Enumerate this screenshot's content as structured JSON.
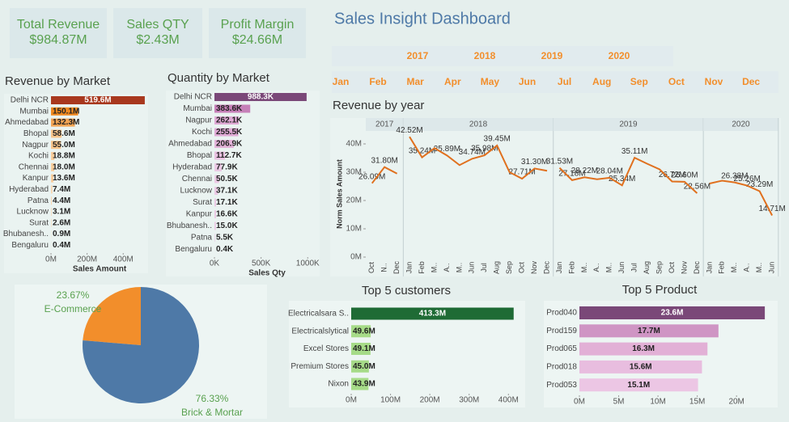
{
  "title": "Sales Insight Dashboard",
  "kpis": [
    {
      "label": "Total Revenue",
      "value": "$984.87M"
    },
    {
      "label": "Sales QTY",
      "value": "$2.43M"
    },
    {
      "label": "Profit Margin",
      "value": "$24.66M"
    }
  ],
  "filters": {
    "years": [
      "2017",
      "2018",
      "2019",
      "2020"
    ],
    "months": [
      "Jan",
      "Feb",
      "Mar",
      "Apr",
      "May",
      "Jun",
      "Jul",
      "Aug",
      "Sep",
      "Oct",
      "Nov",
      "Dec"
    ]
  },
  "chart_data": [
    {
      "type": "hbar",
      "title": "Revenue by Market",
      "categories": [
        "Delhi NCR",
        "Mumbai",
        "Ahmedabad",
        "Bhopal",
        "Nagpur",
        "Kochi",
        "Chennai",
        "Kanpur",
        "Hyderabad",
        "Patna",
        "Lucknow",
        "Surat",
        "Bhubanesh..",
        "Bengaluru"
      ],
      "values": [
        519.6,
        150.1,
        132.3,
        58.6,
        55.0,
        18.8,
        18.0,
        13.6,
        7.4,
        4.4,
        3.1,
        2.6,
        0.9,
        0.4
      ],
      "value_labels": [
        "519.6M",
        "150.1M",
        "132.3M",
        "58.6M",
        "55.0M",
        "18.8M",
        "18.0M",
        "13.6M",
        "7.4M",
        "4.4M",
        "3.1M",
        "2.6M",
        "0.9M",
        "0.4M"
      ],
      "colors": [
        "#a8381e",
        "#f0891f",
        "#f4a453",
        "#f7c48a",
        "#f7c48a",
        "#f8cd9c",
        "#f8cd9c",
        "#f8cd9c",
        "#f9d6ad",
        "#f9d6ad",
        "#f9d6ad",
        "#f9d6ad",
        "#f9d6ad",
        "#f9d6ad"
      ],
      "xlim": [
        0,
        520
      ],
      "xticks": [
        {
          "value": 0,
          "label": "0M"
        },
        {
          "value": 200,
          "label": "200M"
        },
        {
          "value": 400,
          "label": "400M"
        }
      ],
      "xlabel": "Sales Amount"
    },
    {
      "type": "hbar",
      "title": "Quantity by Market",
      "categories": [
        "Delhi NCR",
        "Mumbai",
        "Nagpur",
        "Kochi",
        "Ahmedabad",
        "Bhopal",
        "Hyderabad",
        "Chennai",
        "Lucknow",
        "Surat",
        "Kanpur",
        "Bhubanesh..",
        "Patna",
        "Bengaluru"
      ],
      "values": [
        988.3,
        383.6,
        262.1,
        255.5,
        206.9,
        112.7,
        77.9,
        50.5,
        37.1,
        17.1,
        16.6,
        15.0,
        5.5,
        0.4
      ],
      "value_labels": [
        "988.3K",
        "383.6K",
        "262.1K",
        "255.5K",
        "206.9K",
        "112.7K",
        "77.9K",
        "50.5K",
        "37.1K",
        "17.1K",
        "16.6K",
        "15.0K",
        "5.5K",
        "0.4K"
      ],
      "colors": [
        "#7a4878",
        "#c680b8",
        "#dfa9d4",
        "#dfa9d4",
        "#e3b3d9",
        "#e8c0e0",
        "#ebc9e4",
        "#ebc9e4",
        "#ebc9e4",
        "#ebc9e4",
        "#ebc9e4",
        "#ebc9e4",
        "#ebc9e4",
        "#ebc9e4"
      ],
      "xlim": [
        0,
        1050
      ],
      "xticks": [
        {
          "value": 0,
          "label": "0K"
        },
        {
          "value": 500,
          "label": "500K"
        },
        {
          "value": 1000,
          "label": "1000K"
        }
      ],
      "xlabel": "Sales Qty"
    },
    {
      "type": "line",
      "title": "Revenue by year",
      "ylabel": "Norm Sales Amount",
      "color": "#e0701e",
      "ylim": [
        0,
        45
      ],
      "yticks": [
        {
          "value": 0,
          "label": "0M"
        },
        {
          "value": 10,
          "label": "10M"
        },
        {
          "value": 20,
          "label": "20M"
        },
        {
          "value": 30,
          "label": "30M"
        },
        {
          "value": 40,
          "label": "40M"
        }
      ],
      "panels": [
        {
          "name": "2017",
          "categories": [
            "Oct",
            "N..",
            "Dec"
          ],
          "values": [
            26.09,
            31.8,
            29.5
          ],
          "value_labels": [
            "26.09M",
            "31.80M",
            null
          ]
        },
        {
          "name": "2018",
          "categories": [
            "Jan",
            "Feb",
            "M..",
            "A..",
            "M..",
            "Jun",
            "Jul",
            "Aug",
            "Sep",
            "Oct",
            "Nov",
            "Dec"
          ],
          "values": [
            42.52,
            35.24,
            38.5,
            35.89,
            32.5,
            34.74,
            35.98,
            39.45,
            30.0,
            27.71,
            31.3,
            30.5
          ],
          "value_labels": [
            "42.52M",
            "35.24M",
            null,
            "35.89M",
            null,
            "34.74M",
            "35.98M",
            "39.45M",
            null,
            "27.71M",
            "31.30M",
            null
          ]
        },
        {
          "name": "2019",
          "categories": [
            "Jan",
            "Feb",
            "M..",
            "A..",
            "M..",
            "Jun",
            "Jul",
            "Aug",
            "Sep",
            "Oct",
            "Nov",
            "Dec"
          ],
          "values": [
            31.53,
            27.18,
            28.22,
            27.5,
            28.04,
            25.34,
            35.11,
            33.0,
            31.0,
            26.72,
            26.6,
            22.56
          ],
          "value_labels": [
            "31.53M",
            "27.18M",
            "28.22M",
            null,
            "28.04M",
            "25.34M",
            "35.11M",
            null,
            null,
            "26.72M",
            "26.60M",
            "22.56M"
          ]
        },
        {
          "name": "2020",
          "categories": [
            "Jan",
            "Feb",
            "M..",
            "A..",
            "M..",
            "Jun"
          ],
          "values": [
            26.0,
            27.0,
            26.38,
            25.26,
            23.29,
            14.71
          ],
          "value_labels": [
            null,
            null,
            "26.38M",
            "25.26M",
            "23.29M",
            "14.71M"
          ]
        }
      ]
    },
    {
      "type": "pie",
      "categories": [
        "E-Commerce",
        "Brick & Mortar"
      ],
      "values": [
        23.67,
        76.33
      ],
      "value_labels": [
        "23.67%",
        "76.33%"
      ],
      "colors": [
        "#f28e2b",
        "#4e79a7"
      ]
    },
    {
      "type": "hbar",
      "title": "Top 5 customers",
      "categories": [
        "Electricalsara S..",
        "Electricalslytical",
        "Excel Stores",
        "Premium Stores",
        "Nixon"
      ],
      "values": [
        413.3,
        49.6,
        49.1,
        45.0,
        43.9
      ],
      "value_labels": [
        "413.3M",
        "49.6M",
        "49.1M",
        "45.0M",
        "43.9M"
      ],
      "colors": [
        "#1f6b35",
        "#a6db88",
        "#a6db88",
        "#a6db88",
        "#a6db88"
      ],
      "xlim": [
        0,
        420
      ],
      "xticks": [
        {
          "value": 0,
          "label": "0M"
        },
        {
          "value": 100,
          "label": "100M"
        },
        {
          "value": 200,
          "label": "200M"
        },
        {
          "value": 300,
          "label": "300M"
        },
        {
          "value": 400,
          "label": "400M"
        }
      ]
    },
    {
      "type": "hbar",
      "title": "Top 5 Product",
      "categories": [
        "Prod040",
        "Prod159",
        "Prod065",
        "Prod018",
        "Prod053"
      ],
      "values": [
        23.6,
        17.7,
        16.3,
        15.6,
        15.1
      ],
      "value_labels": [
        "23.6M",
        "17.7M",
        "16.3M",
        "15.6M",
        "15.1M"
      ],
      "colors": [
        "#7a4878",
        "#cf95c4",
        "#e2b0d6",
        "#e8bddf",
        "#ecc6e4"
      ],
      "xlim": [
        0,
        24
      ],
      "xticks": [
        {
          "value": 0,
          "label": "0M"
        },
        {
          "value": 5,
          "label": "5M"
        },
        {
          "value": 10,
          "label": "10M"
        },
        {
          "value": 15,
          "label": "15M"
        },
        {
          "value": 20,
          "label": "20M"
        }
      ]
    }
  ]
}
